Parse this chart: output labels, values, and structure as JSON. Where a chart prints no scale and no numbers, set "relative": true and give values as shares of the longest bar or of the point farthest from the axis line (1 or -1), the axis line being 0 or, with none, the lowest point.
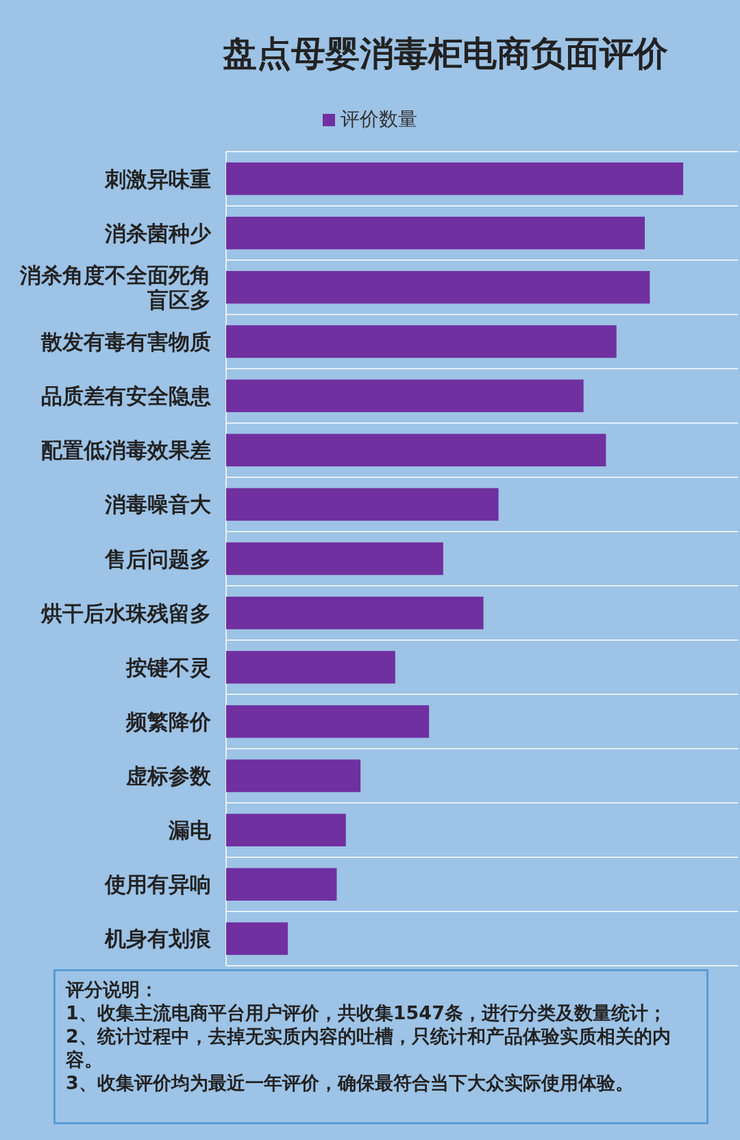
{
  "chart_data": {
    "type": "bar",
    "orientation": "horizontal",
    "relative": true,
    "title": "盘点母婴消毒柜电商负面评价",
    "categories": [
      "刺激异味重",
      "消杀菌种少",
      "消杀角度不全面死角盲区多",
      "散发有毒有害物质",
      "品质差有安全隐患",
      "配置低消毒效果差",
      "消毒噪音大",
      "售后问题多",
      "烘干后水珠残留多",
      "按键不灵",
      "频繁降价",
      "虚标参数",
      "漏电",
      "使用有异响",
      "机身有划痕"
    ],
    "series": [
      {
        "name": "评价数量",
        "color": "#7030a0",
        "values": [
          1,
          0.916,
          0.927,
          0.854,
          0.782,
          0.831,
          0.596,
          0.475,
          0.563,
          0.37,
          0.444,
          0.294,
          0.262,
          0.242,
          0.135
        ]
      }
    ],
    "legend": "top",
    "grid": "y",
    "annotations": [
      "评分说明：",
      "1、收集主流电商平台用户评价，共收集1547条，进行分类及数量统计；",
      "2、统计过程中，去掉无实质内容的吐槽，只统计和产品体验实质相关的内容。",
      "3、收集评价均为最近一年评价，确保最符合当下大众实际使用体验。"
    ]
  }
}
